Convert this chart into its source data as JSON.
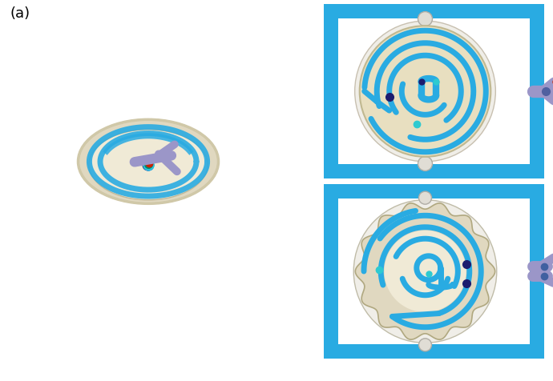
{
  "bg_color": "#ffffff",
  "label_a": "(a)",
  "cyan_blue": "#29ABE2",
  "beige": "#E8DFC0",
  "beige_light": "#F0EAD6",
  "beige_outer": "#E0D8C0",
  "light_gray": "#EBEBEB",
  "lavender": "#9B96C8",
  "lavender_light": "#C0BCDC",
  "teal": "#00A896",
  "teal2": "#2ECAD0",
  "navy": "#1C1C6E",
  "dark_blue": "#0D5FA0",
  "red_dot": "#CC2200",
  "white": "#FFFFFF",
  "frame_inner": "#FAFAFA",
  "gray_nub": "#D0D0D0",
  "gray_nub_edge": "#A8A8A8"
}
